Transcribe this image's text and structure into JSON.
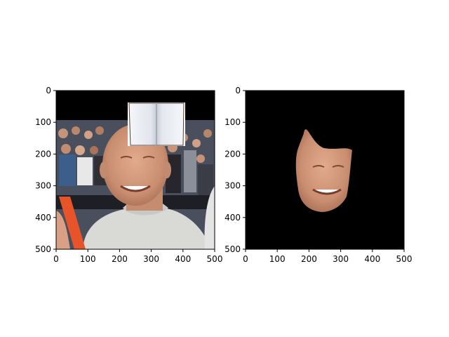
{
  "chart_data": [
    {
      "type": "image",
      "title": "",
      "xlabel": "",
      "ylabel": "",
      "xlim": [
        0,
        500
      ],
      "ylim": [
        500,
        0
      ],
      "xticks": [
        0,
        100,
        200,
        300,
        400,
        500
      ],
      "yticks": [
        0,
        100,
        200,
        300,
        400,
        500
      ],
      "grid": false,
      "content": "photo of smiling bald man in grey shirt in front of a crowd, black band at top, book image overlaid near top right"
    },
    {
      "type": "image",
      "title": "",
      "xlabel": "",
      "ylabel": "",
      "xlim": [
        0,
        500
      ],
      "ylim": [
        500,
        0
      ],
      "xticks": [
        0,
        100,
        200,
        300,
        400,
        500
      ],
      "yticks": [
        0,
        100,
        200,
        300,
        400,
        500
      ],
      "grid": false,
      "content": "segmented face of the same man on a black background"
    }
  ],
  "colors": {
    "axes": "#000000",
    "background": "#000000",
    "skin": "#d49a7c",
    "crowd": "#4a4f5e",
    "shirt": "#d9d9d6"
  }
}
